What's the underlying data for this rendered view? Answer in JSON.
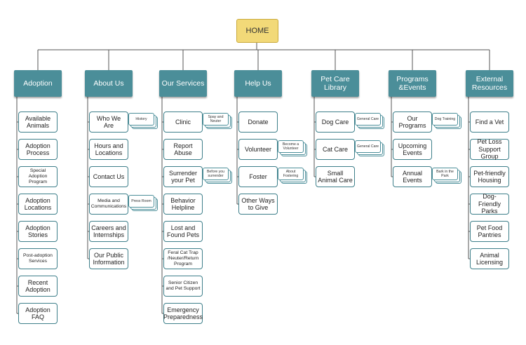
{
  "home": "HOME",
  "columns": [
    {
      "title": "Adoption",
      "items": [
        {
          "label": "Available Animals"
        },
        {
          "label": "Adoption Process"
        },
        {
          "label": "Special Adoption Program",
          "small": true
        },
        {
          "label": "Adoption Locations"
        },
        {
          "label": "Adoption Stories"
        },
        {
          "label": "Post-adoption Services",
          "small": true
        },
        {
          "label": "Recent Adoption"
        },
        {
          "label": "Adoption FAQ"
        }
      ]
    },
    {
      "title": "About Us",
      "items": [
        {
          "label": "Who We Are",
          "sub": "History"
        },
        {
          "label": "Hours and Locations"
        },
        {
          "label": "Contact Us"
        },
        {
          "label": "Media and Communications",
          "small": true,
          "sub": "Press Room"
        },
        {
          "label": "Careers and Internships"
        },
        {
          "label": "Our Public Information"
        }
      ]
    },
    {
      "title": "Our Services",
      "items": [
        {
          "label": "Clinic",
          "sub": "Spay and Neuter"
        },
        {
          "label": "Report Abuse"
        },
        {
          "label": "Surrender your Pet",
          "sub": "Before you surrender"
        },
        {
          "label": "Behavior Helpline"
        },
        {
          "label": "Lost and Found Pets"
        },
        {
          "label": "Feral Cat Trap /Neuter/Return Program",
          "small": true
        },
        {
          "label": "Senior Citizen and Pet Support",
          "small": true
        },
        {
          "label": "Emergency Preparedness"
        }
      ]
    },
    {
      "title": "Help Us",
      "items": [
        {
          "label": "Donate"
        },
        {
          "label": "Volunteer",
          "sub": "Become a Volunteer"
        },
        {
          "label": "Foster",
          "sub": "About Fostering"
        },
        {
          "label": "Other Ways to Give"
        }
      ]
    },
    {
      "title": "Pet Care Library",
      "items": [
        {
          "label": "Dog Care",
          "sub": "General Care"
        },
        {
          "label": "Cat Care",
          "sub": "General Care"
        },
        {
          "label": "Small Animal Care"
        }
      ]
    },
    {
      "title": "Programs &Events",
      "items": [
        {
          "label": "Our Programs",
          "sub": "Dog Training"
        },
        {
          "label": "Upcoming Events"
        },
        {
          "label": "Annual Events",
          "sub": "Bark in the Park"
        }
      ]
    },
    {
      "title": "External Resources",
      "items": [
        {
          "label": "Find a Vet"
        },
        {
          "label": "Pet Loss Support Group"
        },
        {
          "label": "Pet-friendly Housing"
        },
        {
          "label": "Dog-Friendly Parks"
        },
        {
          "label": "Pet Food Pantries"
        },
        {
          "label": "Animal Licensing"
        }
      ]
    }
  ]
}
